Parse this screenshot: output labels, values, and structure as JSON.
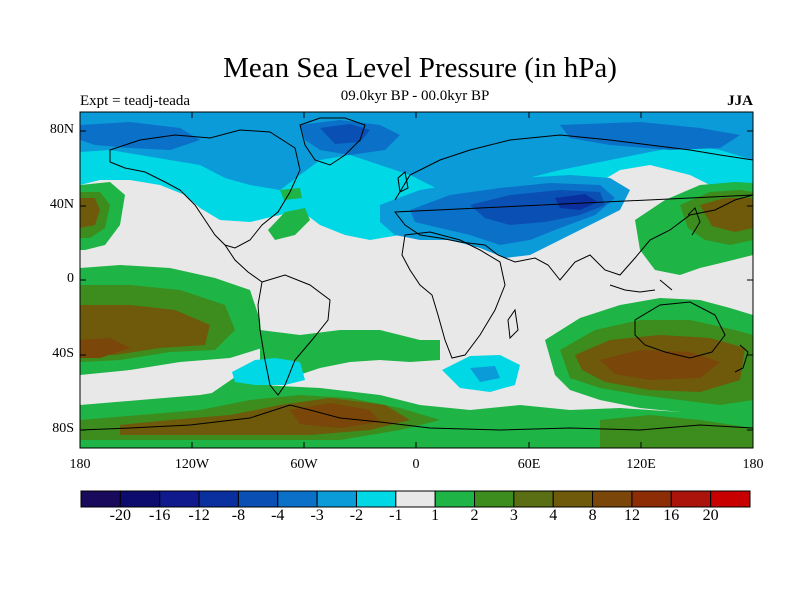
{
  "title": "Mean Sea Level Pressure (in hPa)",
  "subtitle": "09.0kyr BP - 00.0kyr BP",
  "experiment": "Expt = teadj-teada",
  "season": "JJA",
  "lat_ticks": [
    "80N",
    "40N",
    "0",
    "40S",
    "80S"
  ],
  "lon_ticks": [
    "180",
    "120W",
    "60W",
    "0",
    "60E",
    "120E",
    "180"
  ],
  "colorbar": {
    "colors": [
      "#1a0a5c",
      "#0c0c6e",
      "#101a8c",
      "#0a30a0",
      "#0a4fb4",
      "#0a70c8",
      "#0a9bd8",
      "#00d8e6",
      "#e8e8e8",
      "#1eb446",
      "#3c8c1e",
      "#5a6e14",
      "#6e5a0a",
      "#7a460a",
      "#8c2d06",
      "#aa140a",
      "#c80000"
    ],
    "labels": [
      "-20",
      "-16",
      "-12",
      "-8",
      "-4",
      "-3",
      "-2",
      "-1",
      "1",
      "2",
      "3",
      "4",
      "8",
      "12",
      "16",
      "20"
    ]
  },
  "legend_colors": {
    "neutral": "#e8e8e8",
    "pos_light": "#1eb446",
    "pos_mid": "#3c8c1e",
    "pos_high": "#5a6e14",
    "pos_brown": "#6e5a0a",
    "neg_cyan": "#00d8e6",
    "neg_light": "#0a9bd8",
    "neg_mid": "#0a70c8",
    "neg_deep": "#0a4fb4"
  }
}
